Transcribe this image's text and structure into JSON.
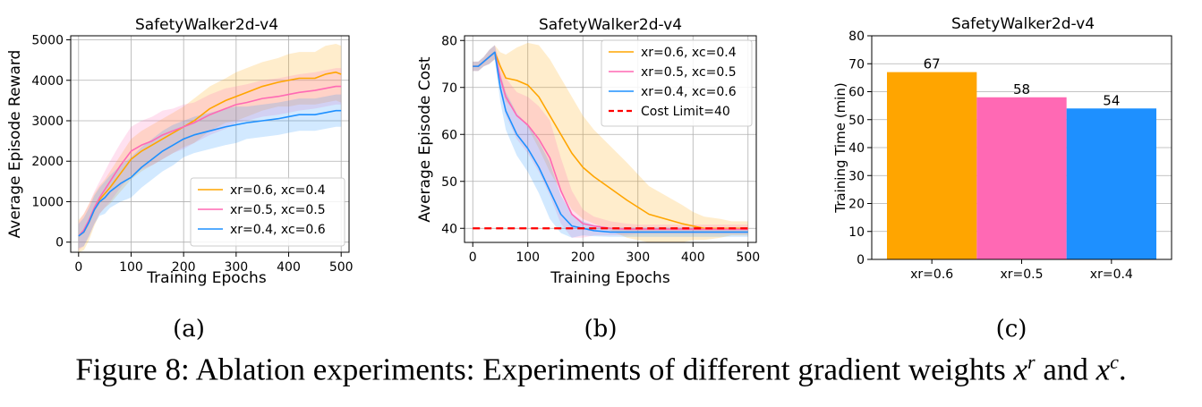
{
  "figure": {
    "caption_prefix": "Figure 8: Ablation experiments: Experiments of different gradient weights ",
    "caption_var_r": "x",
    "caption_sup_r": "r",
    "caption_and": " and ",
    "caption_var_c": "x",
    "caption_sup_c": "c",
    "caption_end": ".",
    "colors": {
      "orange": "#FFA500",
      "pink": "#FF69B4",
      "blue": "#1E90FF",
      "red": "#FF0000"
    }
  },
  "chart_data": [
    {
      "panel_label": "(a)",
      "type": "line",
      "title": "SafetyWalker2d-v4",
      "xlabel": "Training Epochs",
      "ylabel": "Average Episode Reward",
      "xlim": [
        -15,
        515
      ],
      "ylim": [
        -250,
        5100
      ],
      "xticks": [
        0,
        100,
        200,
        300,
        400,
        500
      ],
      "yticks": [
        0,
        1000,
        2000,
        3000,
        4000,
        5000
      ],
      "grid": true,
      "legend_position": "lower-right",
      "series": [
        {
          "name": "xr=0.6, xc=0.4",
          "color": "#FFA500",
          "x": [
            0,
            10,
            20,
            30,
            40,
            50,
            60,
            80,
            100,
            120,
            140,
            160,
            180,
            200,
            220,
            250,
            280,
            300,
            320,
            350,
            380,
            400,
            420,
            450,
            470,
            490,
            500
          ],
          "y": [
            150,
            250,
            500,
            800,
            1050,
            1200,
            1350,
            1700,
            2050,
            2250,
            2400,
            2550,
            2700,
            2850,
            3000,
            3300,
            3500,
            3600,
            3700,
            3850,
            3950,
            4000,
            4050,
            4050,
            4150,
            4200,
            4150
          ],
          "band": [
            400,
            450,
            450,
            400,
            350,
            350,
            400,
            450,
            500,
            500,
            500,
            500,
            500,
            500,
            550,
            550,
            550,
            600,
            600,
            600,
            600,
            650,
            650,
            650,
            700,
            700,
            700
          ]
        },
        {
          "name": "xr=0.5, xc=0.5",
          "color": "#FF69B4",
          "x": [
            0,
            10,
            20,
            30,
            40,
            50,
            60,
            80,
            100,
            120,
            140,
            160,
            180,
            200,
            220,
            250,
            280,
            300,
            320,
            350,
            380,
            400,
            420,
            450,
            470,
            490,
            500
          ],
          "y": [
            150,
            300,
            550,
            850,
            1100,
            1300,
            1500,
            1900,
            2250,
            2400,
            2500,
            2650,
            2750,
            2850,
            2950,
            3150,
            3300,
            3400,
            3450,
            3550,
            3600,
            3650,
            3700,
            3750,
            3800,
            3850,
            3850
          ],
          "band": [
            350,
            400,
            400,
            400,
            400,
            450,
            500,
            550,
            600,
            600,
            600,
            600,
            550,
            550,
            500,
            500,
            500,
            450,
            450,
            450,
            450,
            450,
            450,
            450,
            450,
            450,
            450
          ]
        },
        {
          "name": "xr=0.4, xc=0.6",
          "color": "#1E90FF",
          "x": [
            0,
            10,
            20,
            30,
            40,
            50,
            60,
            80,
            100,
            120,
            140,
            160,
            180,
            200,
            220,
            250,
            280,
            300,
            320,
            350,
            380,
            400,
            420,
            450,
            470,
            490,
            500
          ],
          "y": [
            150,
            250,
            500,
            800,
            1000,
            1100,
            1250,
            1450,
            1600,
            1850,
            2050,
            2250,
            2400,
            2550,
            2650,
            2750,
            2850,
            2900,
            2950,
            3000,
            3050,
            3100,
            3150,
            3150,
            3200,
            3250,
            3250
          ],
          "band": [
            300,
            350,
            350,
            350,
            350,
            400,
            400,
            450,
            500,
            500,
            500,
            500,
            500,
            450,
            450,
            450,
            450,
            450,
            400,
            400,
            400,
            400,
            400,
            400,
            400,
            400,
            400
          ]
        }
      ]
    },
    {
      "panel_label": "(b)",
      "type": "line",
      "title": "SafetyWalker2d-v4",
      "xlabel": "Training Epochs",
      "ylabel": "Average Episode Cost",
      "xlim": [
        -15,
        515
      ],
      "ylim": [
        37,
        81
      ],
      "xticks": [
        0,
        100,
        200,
        300,
        400,
        500
      ],
      "yticks": [
        40,
        50,
        60,
        70,
        80
      ],
      "grid": true,
      "legend_position": "upper-right",
      "series": [
        {
          "name": "xr=0.6, xc=0.4",
          "color": "#FFA500",
          "x": [
            0,
            10,
            20,
            30,
            40,
            50,
            60,
            80,
            100,
            120,
            140,
            160,
            180,
            200,
            220,
            250,
            280,
            300,
            320,
            350,
            380,
            400,
            420,
            450,
            470,
            500
          ],
          "y": [
            74.5,
            74.5,
            75.5,
            76.5,
            77.5,
            74.5,
            72,
            71.5,
            70.5,
            68,
            64,
            60,
            56,
            53,
            51,
            48.5,
            46,
            44.5,
            43,
            42,
            41,
            40.5,
            40,
            40,
            40,
            40
          ],
          "band": [
            1,
            1,
            1,
            1.5,
            1.5,
            3,
            5,
            7,
            9,
            11,
            12,
            12,
            12,
            11,
            10,
            9,
            8,
            7,
            6,
            5,
            4,
            3,
            2.5,
            2,
            1.5,
            1.5
          ]
        },
        {
          "name": "xr=0.5, xc=0.5",
          "color": "#FF69B4",
          "x": [
            0,
            10,
            20,
            30,
            40,
            50,
            60,
            80,
            100,
            120,
            140,
            160,
            180,
            200,
            220,
            250,
            280,
            300,
            350,
            400,
            450,
            500
          ],
          "y": [
            74.5,
            74.5,
            75.5,
            76.5,
            77.5,
            72,
            68,
            64,
            62,
            59,
            55,
            48,
            43,
            41,
            40.5,
            40,
            39.8,
            39.8,
            39.8,
            39.8,
            39.8,
            39.8
          ],
          "band": [
            1,
            1,
            1,
            1.5,
            1.5,
            3,
            4,
            5,
            6,
            7,
            8,
            7,
            5,
            3,
            2,
            1.5,
            1.2,
            1,
            1,
            1,
            1,
            1
          ]
        },
        {
          "name": "xr=0.4, xc=0.6",
          "color": "#1E90FF",
          "x": [
            0,
            10,
            20,
            30,
            40,
            50,
            60,
            80,
            100,
            120,
            140,
            160,
            180,
            200,
            220,
            250,
            280,
            300,
            350,
            400,
            450,
            500
          ],
          "y": [
            74.5,
            74.5,
            75.5,
            76.5,
            77.5,
            70,
            65,
            60,
            57,
            53,
            48,
            43,
            40.5,
            40,
            39.5,
            39.2,
            39.2,
            39.2,
            39.2,
            39.2,
            39.2,
            39.2
          ],
          "band": [
            1,
            1,
            1,
            1.5,
            1.5,
            3,
            4,
            4.5,
            5,
            5.5,
            6,
            4,
            2.5,
            1.5,
            1.2,
            1,
            1,
            1,
            1,
            1,
            1,
            1
          ]
        },
        {
          "name": "Cost Limit=40",
          "color": "#FF0000",
          "dashed": true,
          "x": [
            0,
            500
          ],
          "y": [
            40,
            40
          ]
        }
      ]
    },
    {
      "panel_label": "(c)",
      "type": "bar",
      "title": "SafetyWalker2d-v4",
      "xlabel": "",
      "ylabel": "Training Time (min)",
      "ylim": [
        0,
        80
      ],
      "yticks": [
        0,
        10,
        20,
        30,
        40,
        50,
        60,
        70,
        80
      ],
      "grid": true,
      "categories": [
        "xr=0.6",
        "xr=0.5",
        "xr=0.4"
      ],
      "values": [
        67,
        58,
        54
      ],
      "value_labels": [
        "67",
        "58",
        "54"
      ],
      "colors": [
        "#FFA500",
        "#FF69B4",
        "#1E90FF"
      ]
    }
  ]
}
